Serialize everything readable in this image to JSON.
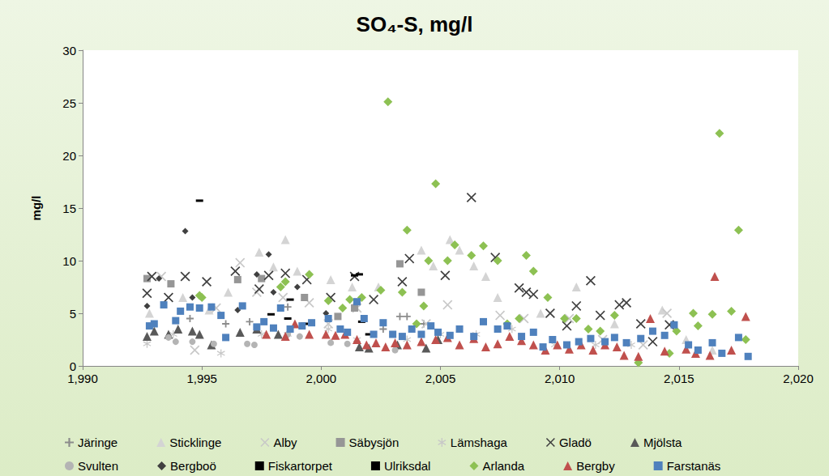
{
  "chart_data": {
    "type": "scatter",
    "title": "SO₄-S, mg/l",
    "y_label": "mg/l",
    "xlim": [
      1990,
      2020
    ],
    "xticks": [
      1990,
      1995,
      2000,
      2005,
      2010,
      2015,
      2020
    ],
    "ylim": [
      0,
      30
    ],
    "yticks": [
      0,
      5,
      10,
      15,
      20,
      25,
      30
    ],
    "grid": false,
    "legend": "bottom",
    "series": [
      {
        "name": "Järinge",
        "color": "#8c8c8c",
        "marker": "plus",
        "x": [
          1994.5,
          1996.0,
          1997.0,
          1998.6,
          2002.6,
          2003.3,
          2003.6,
          2004.3
        ],
        "values": [
          4.5,
          4.0,
          4.2,
          5.6,
          3.5,
          4.7,
          4.7,
          4.0
        ]
      },
      {
        "name": "Sticklinge",
        "color": "#d4d4d4",
        "marker": "triangle",
        "x": [
          1992.8,
          1994.2,
          1995.3,
          1996.1,
          1997.4,
          1998.0,
          1998.5,
          1999.0,
          2000.4,
          2001.3,
          2002.4,
          2004.2,
          2004.7,
          2005.4,
          2005.8,
          2006.4,
          2006.9,
          2007.4,
          2009.2,
          2010.7,
          2012.3,
          2014.3,
          2015.3,
          2016.4
        ],
        "values": [
          5.0,
          6.5,
          5.3,
          7.0,
          10.8,
          9.4,
          12.0,
          9.0,
          8.2,
          7.5,
          7.5,
          11.0,
          9.5,
          12.0,
          11.0,
          9.5,
          8.5,
          6.5,
          5.0,
          7.5,
          4.0,
          5.3,
          2.5,
          1.5
        ]
      },
      {
        "name": "Alby",
        "color": "#c8c8c8",
        "marker": "x",
        "x": [
          1993.3,
          1994.7,
          1995.6,
          1996.6,
          1997.3,
          1998.4,
          1999.5,
          2000.3,
          2001.5,
          2004.4,
          2005.3,
          2007.5,
          2008.5,
          2010.4,
          2011.8,
          2013.5,
          2014.5
        ],
        "values": [
          8.5,
          1.5,
          5.5,
          9.8,
          7.0,
          6.5,
          6.0,
          4.0,
          5.5,
          4.0,
          5.8,
          4.8,
          4.5,
          4.5,
          2.5,
          2.0,
          5.0
        ]
      },
      {
        "name": "Säbysjön",
        "color": "#969696",
        "marker": "square",
        "x": [
          1992.7,
          1993.7,
          1996.5,
          1997.5,
          1999.3,
          2000.7,
          2001.4,
          2003.3,
          2004.2
        ],
        "values": [
          8.3,
          7.8,
          8.2,
          8.3,
          6.5,
          4.7,
          5.5,
          9.7,
          7.0
        ]
      },
      {
        "name": "Lämshaga",
        "color": "#c8c8c8",
        "marker": "star",
        "x": [
          1992.7,
          1993.8,
          1995.8,
          1997.5,
          1998.6,
          2000.3,
          2001.5,
          2003.6,
          2005.0,
          2006.5,
          2008.0,
          2009.8,
          2011.5,
          2013.0
        ],
        "values": [
          2.1,
          3.0,
          1.2,
          3.0,
          3.0,
          3.5,
          2.5,
          2.5,
          3.0,
          3.0,
          3.5,
          2.0,
          2.0,
          2.0
        ]
      },
      {
        "name": "Gladö",
        "color": "#404040",
        "marker": "x",
        "x": [
          1992.7,
          1992.9,
          1993.6,
          1994.3,
          1995.2,
          1996.4,
          1997.4,
          1997.8,
          1998.5,
          1999.4,
          2000.4,
          2001.4,
          2002.2,
          2003.4,
          2003.7,
          2005.2,
          2006.3,
          2007.3,
          2008.3,
          2008.6,
          2008.9,
          2009.6,
          2010.3,
          2010.7,
          2011.3,
          2011.7,
          2012.5,
          2012.8,
          2013.4,
          2013.9,
          2014.6
        ],
        "values": [
          6.9,
          8.5,
          6.5,
          8.5,
          8.0,
          9.0,
          7.3,
          8.6,
          8.8,
          8.2,
          6.5,
          8.5,
          6.3,
          8.0,
          10.2,
          8.6,
          16.0,
          10.3,
          7.4,
          7.0,
          6.8,
          5.0,
          3.8,
          5.7,
          8.1,
          4.8,
          5.8,
          6.0,
          4.0,
          2.3,
          3.9
        ]
      },
      {
        "name": "Mjölsta",
        "color": "#595959",
        "marker": "triangle",
        "x": [
          1992.7,
          1993.0,
          1993.6,
          1994.0,
          1994.6,
          1994.9,
          1995.4,
          1996.6,
          1997.3,
          1998.2,
          2001.6,
          2002.0,
          2003.2,
          2004.4,
          2004.9
        ],
        "values": [
          2.8,
          3.3,
          3.0,
          3.5,
          3.3,
          3.0,
          2.0,
          3.2,
          3.5,
          3.0,
          1.8,
          1.7,
          2.0,
          1.7,
          2.5
        ]
      },
      {
        "name": "Svulten",
        "color": "#b4b4b4",
        "marker": "circle",
        "x": [
          1993.6,
          1993.9,
          1994.6,
          1995.5,
          1996.9,
          1997.2,
          1998.6,
          1999.1,
          2000.4,
          2001.1,
          2003.1
        ],
        "values": [
          2.7,
          2.3,
          2.3,
          2.1,
          2.1,
          2.0,
          3.0,
          2.8,
          2.2,
          2.1,
          1.5
        ]
      },
      {
        "name": "Bergboö",
        "color": "#404040",
        "marker": "diamond",
        "x": [
          1992.7,
          1993.2,
          1994.3,
          1994.6,
          1996.5,
          1997.3,
          1997.8,
          1998.0,
          1999.0,
          2000.2
        ],
        "values": [
          5.7,
          8.3,
          12.8,
          6.5,
          5.3,
          8.7,
          10.6,
          7.0,
          7.5,
          5.0
        ]
      },
      {
        "name": "Fiskartorpet",
        "color": "#000000",
        "marker": "dash",
        "x": [
          1994.9,
          1997.9,
          1998.6,
          1999.3,
          2001.6
        ],
        "values": [
          15.7,
          4.9,
          4.5,
          4.0,
          8.7
        ]
      },
      {
        "name": "Ulriksdal",
        "color": "#000000",
        "marker": "dash",
        "x": [
          1998.7,
          2001.4,
          2001.7,
          2002.0
        ],
        "values": [
          6.3,
          8.6,
          4.2,
          3.0
        ]
      },
      {
        "name": "Arlanda",
        "color": "#8dc153",
        "marker": "diamond",
        "x": [
          1994.9,
          1995.0,
          1998.3,
          1998.5,
          1999.5,
          2000.3,
          2000.9,
          2001.2,
          2001.7,
          2002.5,
          2002.8,
          2003.4,
          2003.6,
          2004.0,
          2004.3,
          2004.5,
          2004.8,
          2005.3,
          2005.6,
          2006.3,
          2006.8,
          2007.4,
          2007.8,
          2008.3,
          2008.6,
          2008.9,
          2009.5,
          2010.2,
          2010.7,
          2011.2,
          2011.7,
          2012.3,
          2013.3,
          2014.6,
          2014.9,
          2015.6,
          2015.8,
          2016.4,
          2016.7,
          2017.2,
          2017.5,
          2017.8
        ],
        "values": [
          6.7,
          6.5,
          7.5,
          8.0,
          8.7,
          6.2,
          5.5,
          6.3,
          6.5,
          7.2,
          25.1,
          7.0,
          12.9,
          4.0,
          5.7,
          10.0,
          17.3,
          10.0,
          11.5,
          10.5,
          11.4,
          10.0,
          4.0,
          4.5,
          10.5,
          9.0,
          6.5,
          4.5,
          4.5,
          3.5,
          3.3,
          4.8,
          0.3,
          1.2,
          3.3,
          5.0,
          3.8,
          4.9,
          22.1,
          5.2,
          12.9,
          2.5
        ]
      },
      {
        "name": "Bergby",
        "color": "#c0504d",
        "marker": "triangle",
        "x": [
          1997.7,
          1998.5,
          1998.9,
          1999.5,
          2000.2,
          2000.6,
          2001.0,
          2001.5,
          2001.9,
          2002.3,
          2002.7,
          2003.1,
          2003.6,
          2004.2,
          2004.8,
          2005.3,
          2005.8,
          2006.4,
          2006.9,
          2007.4,
          2007.9,
          2008.4,
          2008.9,
          2009.4,
          2009.9,
          2010.4,
          2010.9,
          2011.4,
          2011.9,
          2012.4,
          2012.7,
          2013.3,
          2013.8,
          2014.4,
          2015.3,
          2015.7,
          2016.3,
          2016.5,
          2017.2,
          2017.8
        ],
        "values": [
          3.0,
          2.8,
          4.0,
          3.0,
          3.0,
          2.9,
          3.0,
          2.5,
          2.0,
          2.2,
          1.8,
          2.2,
          2.0,
          2.3,
          2.5,
          2.7,
          2.0,
          2.6,
          1.8,
          2.1,
          2.8,
          2.4,
          2.0,
          1.5,
          2.0,
          1.6,
          2.0,
          1.5,
          2.0,
          1.8,
          1.0,
          0.9,
          4.5,
          1.4,
          1.6,
          1.2,
          1.0,
          8.5,
          1.5,
          4.7
        ]
      },
      {
        "name": "Farstanäs",
        "color": "#4f81bd",
        "marker": "square",
        "x": [
          1992.8,
          1993.0,
          1993.4,
          1993.9,
          1994.1,
          1994.5,
          1994.9,
          1995.4,
          1995.8,
          1996.0,
          1996.7,
          1997.3,
          1997.6,
          1998.0,
          1998.3,
          1998.7,
          1999.2,
          1999.6,
          2000.3,
          2000.8,
          2001.1,
          2001.5,
          2001.8,
          2002.2,
          2002.6,
          2003.0,
          2003.4,
          2003.8,
          2004.2,
          2004.6,
          2004.9,
          2005.4,
          2005.8,
          2006.4,
          2006.8,
          2007.4,
          2007.8,
          2008.4,
          2008.9,
          2009.3,
          2009.7,
          2010.3,
          2010.8,
          2011.3,
          2011.9,
          2012.3,
          2012.8,
          2013.4,
          2013.9,
          2014.4,
          2014.8,
          2015.4,
          2015.8,
          2016.4,
          2016.8,
          2017.5,
          2017.9
        ],
        "values": [
          3.8,
          4.0,
          5.8,
          4.3,
          5.2,
          5.6,
          5.5,
          5.6,
          4.8,
          2.7,
          5.7,
          3.7,
          4.2,
          3.6,
          5.5,
          3.5,
          3.8,
          4.1,
          4.5,
          3.5,
          3.2,
          6.1,
          4.5,
          3.0,
          4.1,
          3.0,
          2.8,
          3.5,
          3.0,
          3.8,
          3.2,
          2.9,
          3.5,
          2.8,
          4.2,
          3.5,
          3.8,
          2.8,
          3.2,
          1.8,
          2.5,
          2.0,
          2.3,
          2.6,
          2.3,
          2.7,
          2.2,
          2.6,
          3.3,
          2.9,
          3.9,
          2.0,
          1.5,
          2.2,
          1.2,
          2.7,
          0.9
        ]
      }
    ]
  }
}
